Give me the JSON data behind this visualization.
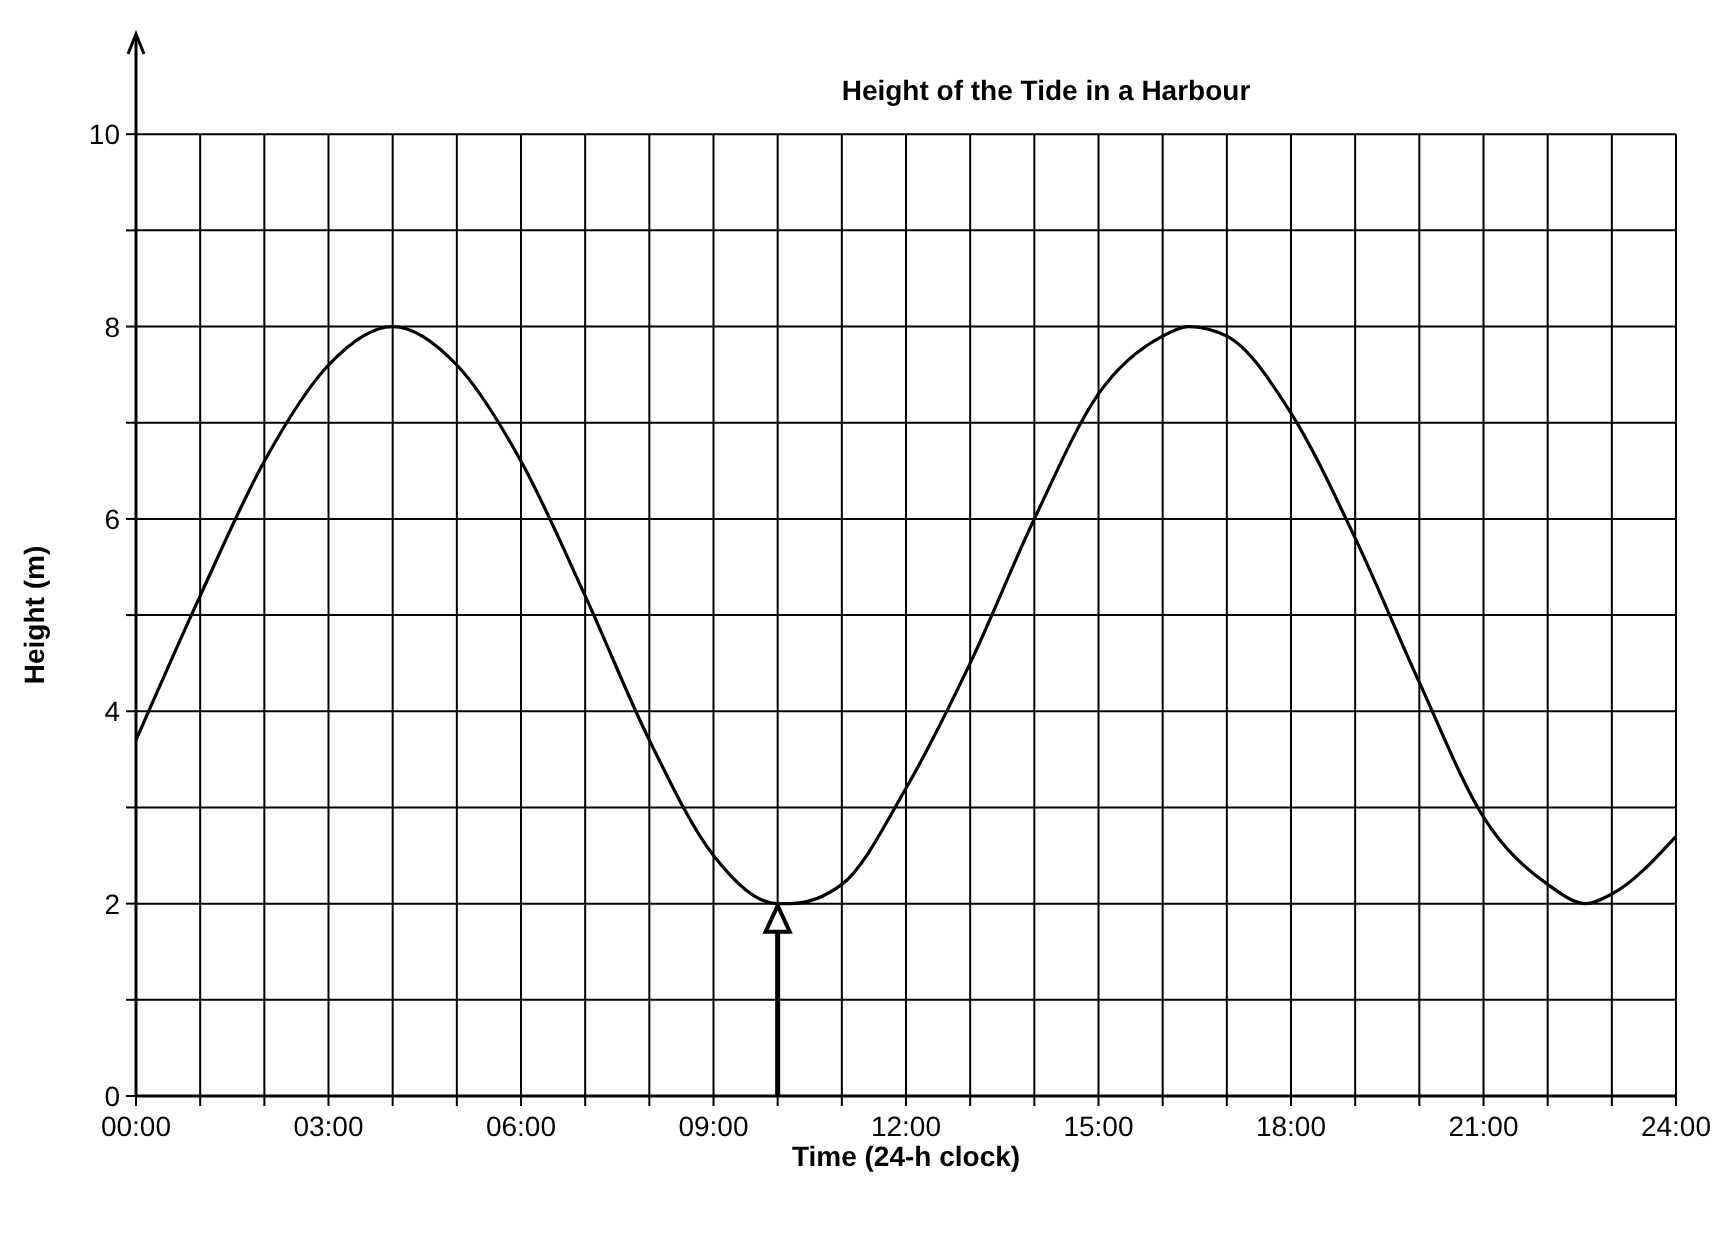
{
  "chart_data": {
    "type": "line",
    "title": "Height of the Tide in a  Harbour",
    "xlabel": "Time (24-h clock)",
    "ylabel": "Height (m)",
    "x": [
      0,
      1,
      2,
      3,
      4,
      5,
      6,
      7,
      8,
      9,
      10,
      10.2,
      11,
      12,
      13,
      14,
      15,
      16,
      16.4,
      17,
      18,
      19,
      20,
      21,
      22,
      22.6,
      23,
      24
    ],
    "series": [
      {
        "color": "#000000",
        "values": [
          3.7,
          5.2,
          6.6,
          7.6,
          8.0,
          7.6,
          6.6,
          5.2,
          3.7,
          2.5,
          2.0,
          2.0,
          2.2,
          3.2,
          4.5,
          6.0,
          7.3,
          7.9,
          8.0,
          7.9,
          7.1,
          5.8,
          4.3,
          2.9,
          2.2,
          2.0,
          2.1,
          2.7
        ]
      }
    ],
    "xlim": [
      0,
      24
    ],
    "xticks": [
      {
        "value": 0,
        "label": "00:00"
      },
      {
        "value": 1,
        "label": null
      },
      {
        "value": 2,
        "label": null
      },
      {
        "value": 3,
        "label": "03:00"
      },
      {
        "value": 4,
        "label": null
      },
      {
        "value": 5,
        "label": null
      },
      {
        "value": 6,
        "label": "06:00"
      },
      {
        "value": 7,
        "label": null
      },
      {
        "value": 8,
        "label": null
      },
      {
        "value": 9,
        "label": "09:00"
      },
      {
        "value": 10,
        "label": null
      },
      {
        "value": 11,
        "label": null
      },
      {
        "value": 12,
        "label": "12:00"
      },
      {
        "value": 13,
        "label": null
      },
      {
        "value": 14,
        "label": null
      },
      {
        "value": 15,
        "label": "15:00"
      },
      {
        "value": 16,
        "label": null
      },
      {
        "value": 17,
        "label": null
      },
      {
        "value": 18,
        "label": "18:00"
      },
      {
        "value": 19,
        "label": null
      },
      {
        "value": 20,
        "label": null
      },
      {
        "value": 21,
        "label": "21:00"
      },
      {
        "value": 22,
        "label": null
      },
      {
        "value": 23,
        "label": null
      },
      {
        "value": 24,
        "label": "24:00"
      }
    ],
    "ylim": [
      0,
      11
    ],
    "yticks": [
      0,
      {
        "value": 1,
        "label": null
      },
      2,
      {
        "value": 3,
        "label": null
      },
      4,
      {
        "value": 5,
        "label": null
      },
      6,
      {
        "value": 7,
        "label": null
      },
      8,
      {
        "value": 9,
        "label": null
      },
      10
    ],
    "grid": true,
    "marker": "none",
    "line_style": "solid"
  }
}
